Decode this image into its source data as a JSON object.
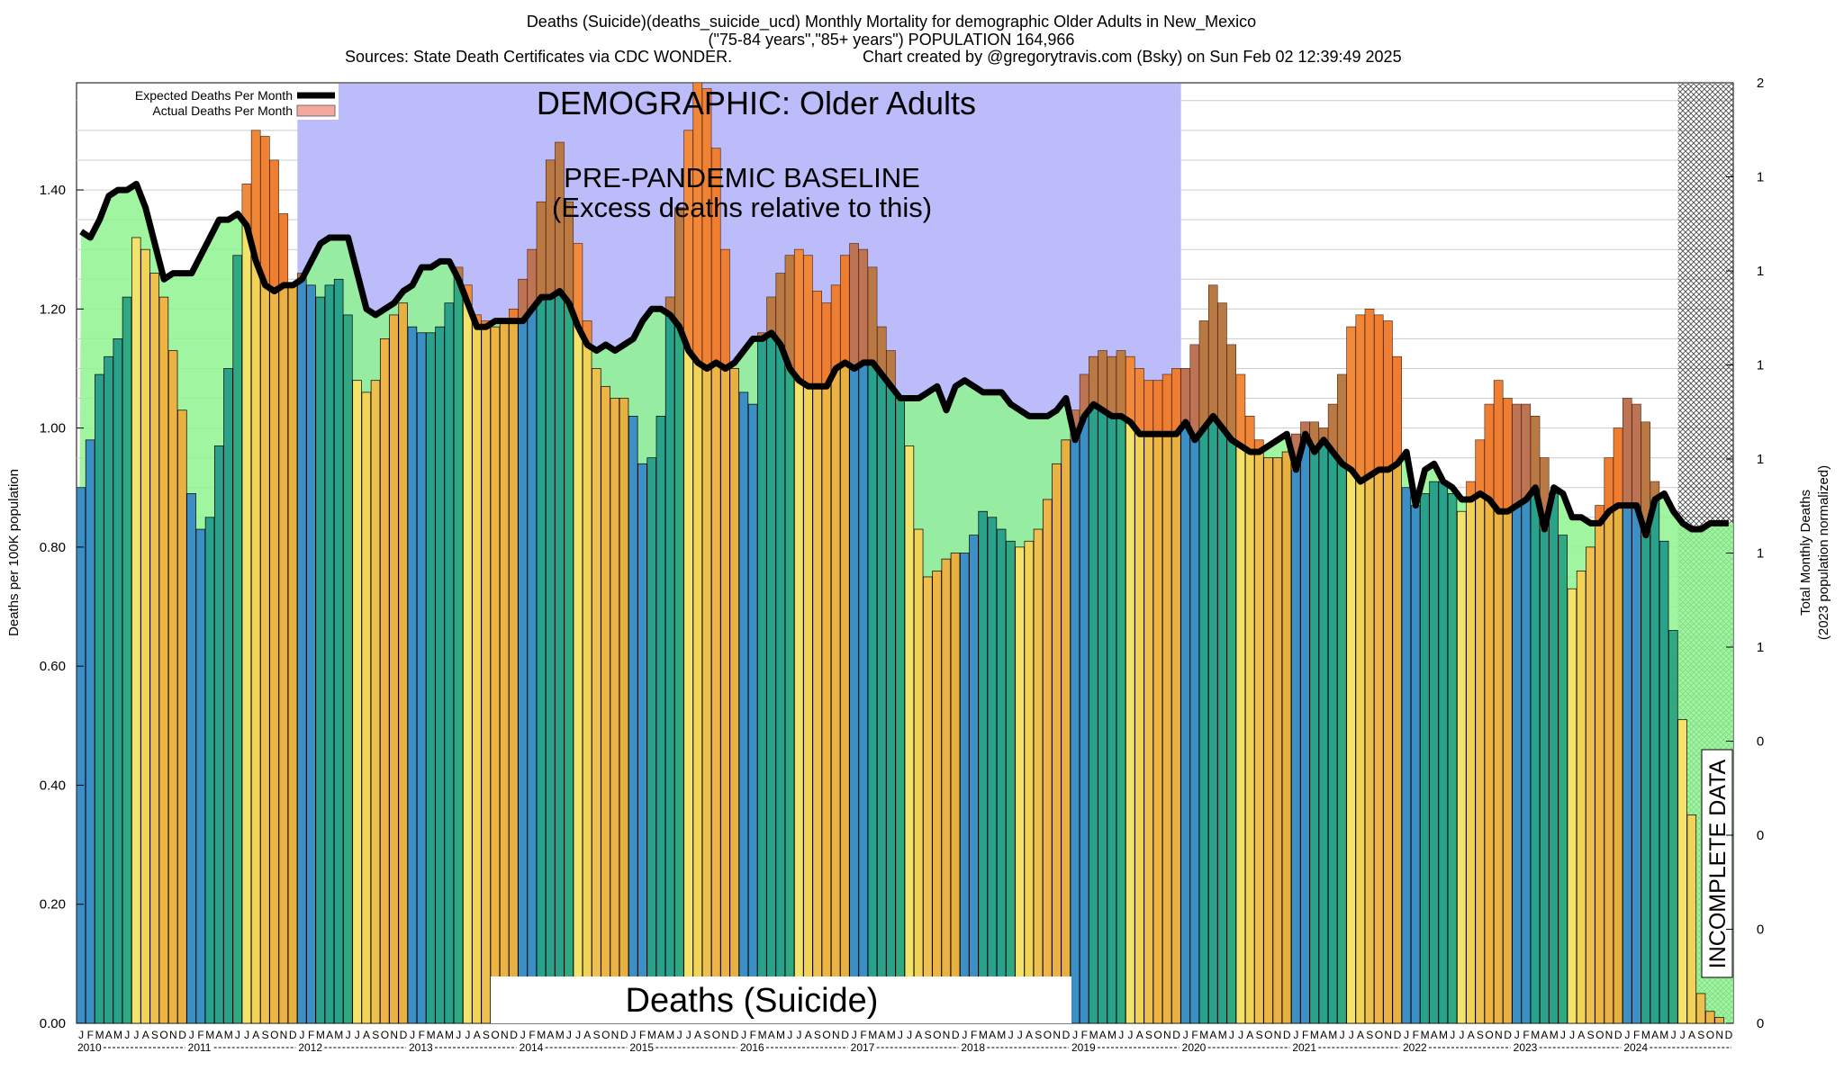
{
  "chart_data": {
    "type": "bar",
    "title": "Deaths (Suicide)(deaths_suicide_ucd) Monthly Mortality for demographic Older Adults in New_Mexico",
    "subtitle": "(\"75-84 years\",\"85+ years\") POPULATION 164,966",
    "source": "Sources: State Death Certificates via CDC WONDER.",
    "credit": "Chart created by @gregorytravis.com (Bsky) on Sun Feb 02 12:39:49 2025",
    "ylabel": "Deaths per 100K population",
    "y2label_line1": "Total Monthly Deaths",
    "y2label_line2": "(2023 population normalized)",
    "ylim": [
      0,
      1.58
    ],
    "yticks": [
      "0.00",
      "0.20",
      "0.40",
      "0.60",
      "0.80",
      "1.00",
      "1.20",
      "1.40"
    ],
    "y2ticks": [
      "0",
      "0",
      "0",
      "0",
      "1",
      "1",
      "1",
      "1",
      "1",
      "1",
      "2"
    ],
    "legend": {
      "position": "top-left",
      "expected_label": "Expected Deaths Per Month",
      "actual_label": "Actual Deaths Per Month"
    },
    "annotations": {
      "demographic": "DEMOGRAPHIC: Older Adults",
      "baseline_line1": "PRE-PANDEMIC BASELINE",
      "baseline_line2": "(Excess deaths relative to this)",
      "cause": "Deaths (Suicide)",
      "incomplete": "INCOMPLETE DATA"
    },
    "baseline_period": [
      "2012-01",
      "2019-12"
    ],
    "incomplete_from": "2024-07",
    "month_labels": [
      "J",
      "F",
      "M",
      "A",
      "M",
      "J",
      "J",
      "A",
      "S",
      "O",
      "N",
      "D"
    ],
    "years": [
      "2010",
      "2011",
      "2012",
      "2013",
      "2014",
      "2015",
      "2016",
      "2017",
      "2018",
      "2019",
      "2020",
      "2021",
      "2022",
      "2023",
      "2024"
    ],
    "start": "2010-01",
    "series": [
      {
        "name": "Actual Deaths Per Month",
        "values": [
          0.9,
          0.98,
          1.09,
          1.12,
          1.15,
          1.22,
          1.32,
          1.3,
          1.26,
          1.22,
          1.13,
          1.03,
          0.89,
          0.83,
          0.85,
          0.97,
          1.1,
          1.29,
          1.41,
          1.5,
          1.49,
          1.45,
          1.36,
          1.24,
          1.26,
          1.24,
          1.22,
          1.24,
          1.25,
          1.19,
          1.08,
          1.06,
          1.08,
          1.15,
          1.19,
          1.21,
          1.17,
          1.16,
          1.16,
          1.17,
          1.21,
          1.27,
          1.24,
          1.19,
          1.18,
          1.17,
          1.18,
          1.2,
          1.25,
          1.3,
          1.38,
          1.45,
          1.48,
          1.38,
          1.31,
          1.18,
          1.1,
          1.07,
          1.05,
          1.05,
          1.02,
          0.94,
          0.95,
          1.02,
          1.22,
          1.37,
          1.5,
          1.58,
          1.57,
          1.47,
          1.3,
          1.1,
          1.06,
          1.04,
          1.16,
          1.22,
          1.26,
          1.29,
          1.3,
          1.29,
          1.23,
          1.21,
          1.24,
          1.29,
          1.31,
          1.3,
          1.27,
          1.17,
          1.13,
          1.05,
          0.97,
          0.83,
          0.75,
          0.76,
          0.78,
          0.79,
          0.79,
          0.82,
          0.86,
          0.85,
          0.83,
          0.81,
          0.8,
          0.81,
          0.83,
          0.88,
          0.94,
          0.98,
          1.03,
          1.09,
          1.12,
          1.13,
          1.12,
          1.13,
          1.12,
          1.1,
          1.08,
          1.08,
          1.09,
          1.1,
          1.1,
          1.14,
          1.18,
          1.24,
          1.21,
          1.14,
          1.09,
          1.02,
          0.98,
          0.95,
          0.95,
          0.96,
          0.99,
          1.01,
          1.01,
          1.0,
          1.04,
          1.09,
          1.17,
          1.19,
          1.2,
          1.19,
          1.18,
          1.12,
          0.9,
          0.87,
          0.89,
          0.91,
          0.91,
          0.89,
          0.86,
          0.91,
          0.98,
          1.04,
          1.08,
          1.05,
          1.04,
          1.04,
          1.02,
          0.95,
          0.89,
          0.82,
          0.73,
          0.76,
          0.8,
          0.87,
          0.95,
          1.0,
          1.05,
          1.04,
          1.01,
          0.91,
          0.81,
          0.66,
          0.51,
          0.35,
          0.05,
          0.02,
          0.01,
          0.0
        ]
      },
      {
        "name": "Expected Deaths Per Month",
        "values": [
          1.33,
          1.32,
          1.35,
          1.39,
          1.4,
          1.4,
          1.41,
          1.37,
          1.31,
          1.25,
          1.26,
          1.26,
          1.26,
          1.29,
          1.32,
          1.35,
          1.35,
          1.36,
          1.34,
          1.28,
          1.24,
          1.23,
          1.24,
          1.24,
          1.25,
          1.28,
          1.31,
          1.32,
          1.32,
          1.32,
          1.26,
          1.2,
          1.19,
          1.2,
          1.21,
          1.23,
          1.24,
          1.27,
          1.27,
          1.28,
          1.28,
          1.25,
          1.21,
          1.17,
          1.17,
          1.18,
          1.18,
          1.18,
          1.18,
          1.2,
          1.22,
          1.22,
          1.23,
          1.21,
          1.17,
          1.14,
          1.13,
          1.14,
          1.13,
          1.14,
          1.15,
          1.18,
          1.2,
          1.2,
          1.19,
          1.17,
          1.13,
          1.11,
          1.1,
          1.11,
          1.1,
          1.11,
          1.13,
          1.15,
          1.15,
          1.16,
          1.14,
          1.1,
          1.08,
          1.07,
          1.07,
          1.07,
          1.1,
          1.11,
          1.1,
          1.11,
          1.11,
          1.09,
          1.07,
          1.05,
          1.05,
          1.05,
          1.06,
          1.07,
          1.03,
          1.07,
          1.08,
          1.07,
          1.06,
          1.06,
          1.06,
          1.04,
          1.03,
          1.02,
          1.02,
          1.02,
          1.03,
          1.05,
          0.98,
          1.02,
          1.04,
          1.03,
          1.02,
          1.02,
          1.01,
          0.99,
          0.99,
          0.99,
          0.99,
          0.99,
          1.01,
          0.98,
          1.0,
          1.02,
          1.0,
          0.98,
          0.97,
          0.96,
          0.96,
          0.97,
          0.98,
          0.99,
          0.93,
          0.99,
          0.96,
          0.98,
          0.96,
          0.94,
          0.93,
          0.91,
          0.92,
          0.93,
          0.93,
          0.94,
          0.96,
          0.87,
          0.93,
          0.94,
          0.91,
          0.9,
          0.88,
          0.88,
          0.89,
          0.88,
          0.86,
          0.86,
          0.87,
          0.88,
          0.9,
          0.83,
          0.9,
          0.89,
          0.85,
          0.85,
          0.84,
          0.84,
          0.86,
          0.87,
          0.87,
          0.87,
          0.82,
          0.88,
          0.89,
          0.86,
          0.84,
          0.83,
          0.83,
          0.84,
          0.84,
          0.84
        ]
      }
    ]
  }
}
